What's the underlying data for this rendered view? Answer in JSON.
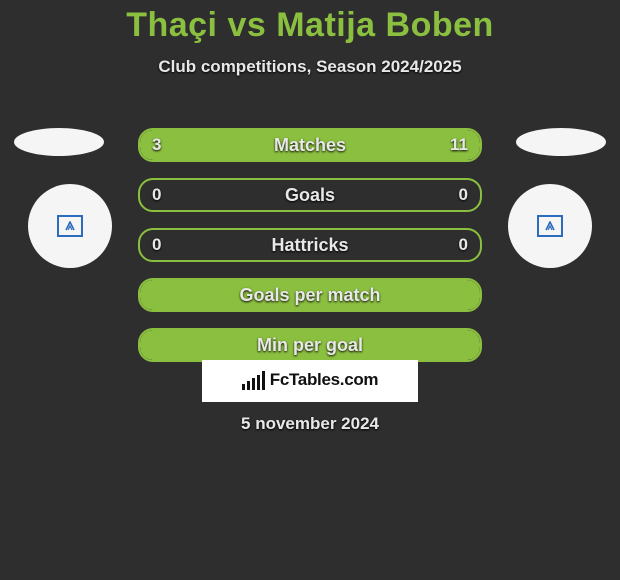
{
  "title": "Thaçi vs Matija Boben",
  "subtitle": "Club competitions, Season 2024/2025",
  "date": "5 november 2024",
  "brand": "FcTables.com",
  "colors": {
    "accent": "#8bbf3f",
    "background": "#2e2e2e",
    "text": "#e8e8e8",
    "brand_bg": "#ffffff",
    "brand_fg": "#111111"
  },
  "left_player_logo_color": "#2d6bbf",
  "right_player_logo_color": "#2d6bbf",
  "rows": [
    {
      "label": "Matches",
      "left": "3",
      "right": "11",
      "left_pct": 21,
      "right_pct": 79,
      "type": "split"
    },
    {
      "label": "Goals",
      "left": "0",
      "right": "0",
      "left_pct": 0,
      "right_pct": 0,
      "type": "empty"
    },
    {
      "label": "Hattricks",
      "left": "0",
      "right": "0",
      "left_pct": 0,
      "right_pct": 0,
      "type": "empty"
    },
    {
      "label": "Goals per match",
      "left": "",
      "right": "",
      "left_pct": 100,
      "right_pct": 0,
      "type": "full"
    },
    {
      "label": "Min per goal",
      "left": "",
      "right": "",
      "left_pct": 100,
      "right_pct": 0,
      "type": "full"
    }
  ],
  "brand_bars_heights": [
    6,
    9,
    12,
    15,
    19
  ]
}
